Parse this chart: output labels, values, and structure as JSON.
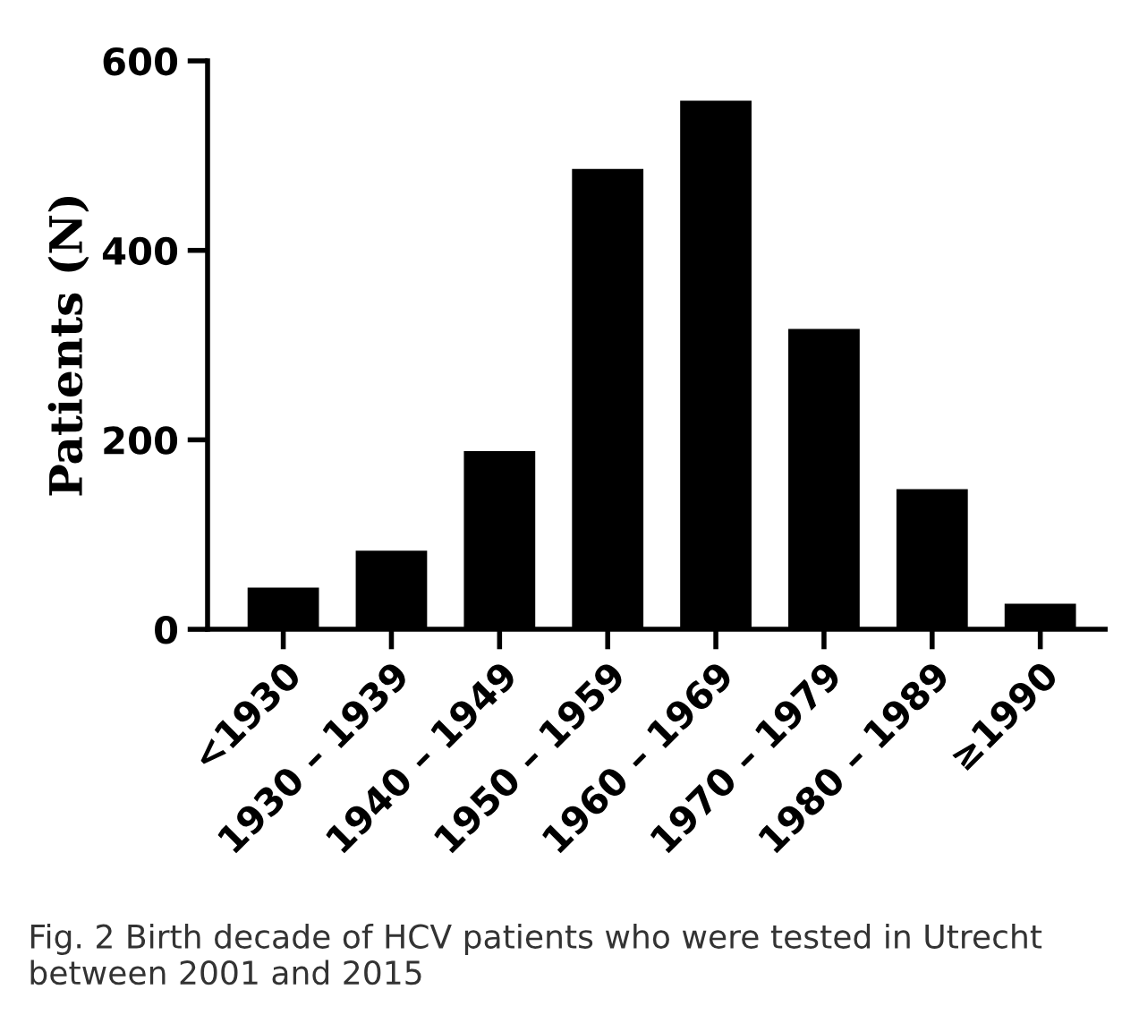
{
  "chart_data": {
    "type": "bar",
    "ylabel": "Patients (N)",
    "categories": [
      "<1930",
      "1930 – 1939",
      "1940 – 1949",
      "1950 – 1959",
      "1960 – 1969",
      "1970 – 1979",
      "1980 – 1989",
      "≥1990"
    ],
    "values": [
      44,
      83,
      188,
      486,
      558,
      317,
      148,
      27
    ],
    "color": "#000000",
    "ylim": [
      0,
      600
    ],
    "yticks": [
      0,
      200,
      400,
      600
    ],
    "grid": false,
    "annotations": [
      "Fig. 2 Birth decade of HCV patients who were tested in Utrecht between 2001 and 2015"
    ]
  }
}
